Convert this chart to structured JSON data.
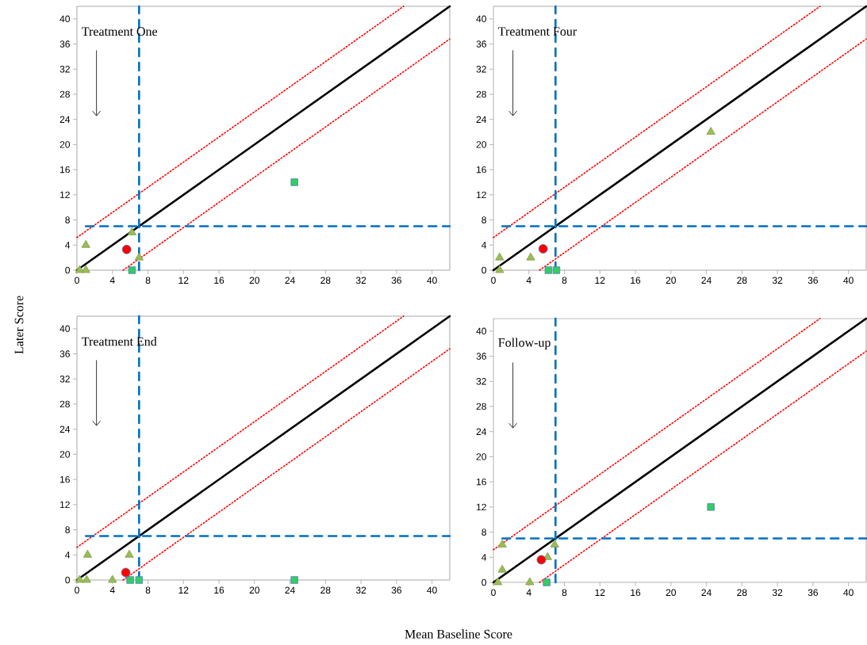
{
  "chart_data": [
    {
      "type": "scatter",
      "ylabel": "Later Score",
      "annotations": [
        "Treatment One"
      ],
      "xlim": [
        0,
        42
      ],
      "ylim": [
        0,
        42
      ],
      "xticks": [
        0,
        4,
        8,
        12,
        16,
        20,
        24,
        28,
        32,
        36,
        40
      ],
      "yticks": [
        0,
        4,
        8,
        12,
        16,
        20,
        24,
        28,
        32,
        36,
        40
      ],
      "series": [
        {
          "type": "line",
          "color": "#000000",
          "line_style": "solid",
          "x": [
            0,
            42
          ],
          "values": [
            0,
            42
          ]
        },
        {
          "type": "line",
          "color": "#ff0000",
          "line_style": "dotted",
          "x": [
            0,
            36.8
          ],
          "values": [
            5.2,
            42
          ]
        },
        {
          "type": "line",
          "color": "#ff0000",
          "line_style": "dotted",
          "x": [
            5.2,
            42
          ],
          "values": [
            0,
            36.8
          ]
        },
        {
          "type": "line",
          "color": "#0070c0",
          "line_style": "dashed",
          "x": [
            7,
            7
          ],
          "values": [
            0,
            42
          ]
        },
        {
          "type": "line",
          "color": "#0070c0",
          "line_style": "dashed",
          "x": [
            1,
            42
          ],
          "values": [
            7,
            7
          ]
        },
        {
          "marker": "triangle",
          "color": "#9bbb59",
          "x": [
            1.0,
            6.2,
            7.0,
            0.3,
            1.0
          ],
          "values": [
            4,
            6,
            2,
            0,
            0
          ]
        },
        {
          "marker": "square",
          "color": "#33cc66",
          "x": [
            6.2,
            24.5
          ],
          "values": [
            0,
            14
          ]
        },
        {
          "marker": "circle",
          "color": "#ff0000",
          "x": [
            5.6
          ],
          "values": [
            3.3
          ]
        }
      ]
    },
    {
      "type": "scatter",
      "annotations": [
        "Treatment Four"
      ],
      "xlim": [
        0,
        42
      ],
      "ylim": [
        0,
        42
      ],
      "xticks": [
        0,
        4,
        8,
        12,
        16,
        20,
        24,
        28,
        32,
        36,
        40
      ],
      "yticks": [
        0,
        4,
        8,
        12,
        16,
        20,
        24,
        28,
        32,
        36,
        40
      ],
      "series": [
        {
          "type": "line",
          "color": "#000000",
          "line_style": "solid",
          "x": [
            0,
            42
          ],
          "values": [
            0,
            42
          ]
        },
        {
          "type": "line",
          "color": "#ff0000",
          "line_style": "dotted",
          "x": [
            0,
            36.8
          ],
          "values": [
            5.2,
            42
          ]
        },
        {
          "type": "line",
          "color": "#ff0000",
          "line_style": "dotted",
          "x": [
            5.2,
            42
          ],
          "values": [
            0,
            36.8
          ]
        },
        {
          "type": "line",
          "color": "#0070c0",
          "line_style": "dashed",
          "x": [
            7,
            7
          ],
          "values": [
            0,
            42
          ]
        },
        {
          "type": "line",
          "color": "#0070c0",
          "line_style": "dashed",
          "x": [
            1,
            42
          ],
          "values": [
            7,
            7
          ]
        },
        {
          "marker": "triangle",
          "color": "#9bbb59",
          "x": [
            0.7,
            0.7,
            4.2,
            24.5
          ],
          "values": [
            2,
            0,
            2,
            22
          ]
        },
        {
          "marker": "square",
          "color": "#33cc66",
          "x": [
            6.2,
            7.1
          ],
          "values": [
            0,
            0
          ]
        },
        {
          "marker": "circle",
          "color": "#ff0000",
          "x": [
            5.6
          ],
          "values": [
            3.4
          ]
        }
      ]
    },
    {
      "type": "scatter",
      "xlabel": "Mean Baseline Score",
      "annotations": [
        "Treatment End"
      ],
      "xlim": [
        0,
        42
      ],
      "ylim": [
        0,
        42
      ],
      "xticks": [
        0,
        4,
        8,
        12,
        16,
        20,
        24,
        28,
        32,
        36,
        40
      ],
      "yticks": [
        0,
        4,
        8,
        12,
        16,
        20,
        24,
        28,
        32,
        36,
        40
      ],
      "series": [
        {
          "type": "line",
          "color": "#000000",
          "line_style": "solid",
          "x": [
            0,
            42
          ],
          "values": [
            0,
            42
          ]
        },
        {
          "type": "line",
          "color": "#ff0000",
          "line_style": "dotted",
          "x": [
            0,
            36.8
          ],
          "values": [
            5.2,
            42
          ]
        },
        {
          "type": "line",
          "color": "#ff0000",
          "line_style": "dotted",
          "x": [
            5.2,
            42
          ],
          "values": [
            0,
            36.8
          ]
        },
        {
          "type": "line",
          "color": "#0070c0",
          "line_style": "dashed",
          "x": [
            7,
            7
          ],
          "values": [
            0,
            42
          ]
        },
        {
          "type": "line",
          "color": "#0070c0",
          "line_style": "dashed",
          "x": [
            1,
            42
          ],
          "values": [
            7,
            7
          ]
        },
        {
          "marker": "triangle",
          "color": "#9bbb59",
          "x": [
            1.2,
            5.9,
            0.3,
            1.1,
            4.0
          ],
          "values": [
            4,
            4,
            0,
            0,
            0
          ]
        },
        {
          "marker": "square",
          "color": "#33cc66",
          "x": [
            6.0,
            7.0,
            24.5
          ],
          "values": [
            0,
            0,
            0
          ]
        },
        {
          "marker": "circle",
          "color": "#ff0000",
          "x": [
            5.5
          ],
          "values": [
            1.2
          ]
        }
      ]
    },
    {
      "type": "scatter",
      "annotations": [
        "Follow-up"
      ],
      "xlim": [
        0,
        42
      ],
      "ylim": [
        0,
        42
      ],
      "xticks": [
        0,
        4,
        8,
        12,
        16,
        20,
        24,
        28,
        32,
        36,
        40
      ],
      "yticks": [
        0,
        4,
        8,
        12,
        16,
        20,
        24,
        28,
        32,
        36,
        40
      ],
      "series": [
        {
          "type": "line",
          "color": "#000000",
          "line_style": "solid",
          "x": [
            0,
            42
          ],
          "values": [
            0,
            42
          ]
        },
        {
          "type": "line",
          "color": "#ff0000",
          "line_style": "dotted",
          "x": [
            0,
            36.8
          ],
          "values": [
            5.2,
            42
          ]
        },
        {
          "type": "line",
          "color": "#ff0000",
          "line_style": "dotted",
          "x": [
            5.2,
            42
          ],
          "values": [
            0,
            36.8
          ]
        },
        {
          "type": "line",
          "color": "#0070c0",
          "line_style": "dashed",
          "x": [
            7,
            7
          ],
          "values": [
            0,
            42
          ]
        },
        {
          "type": "line",
          "color": "#0070c0",
          "line_style": "dashed",
          "x": [
            1,
            42
          ],
          "values": [
            7,
            7
          ]
        },
        {
          "marker": "triangle",
          "color": "#9bbb59",
          "x": [
            1.0,
            1.0,
            0.5,
            4.1,
            6.9,
            6.1
          ],
          "values": [
            6,
            2,
            0,
            0,
            6,
            4
          ]
        },
        {
          "marker": "square",
          "color": "#33cc66",
          "x": [
            6.0,
            24.5
          ],
          "values": [
            0,
            12
          ]
        },
        {
          "marker": "circle",
          "color": "#ff0000",
          "x": [
            5.4
          ],
          "values": [
            3.6
          ]
        }
      ]
    }
  ]
}
